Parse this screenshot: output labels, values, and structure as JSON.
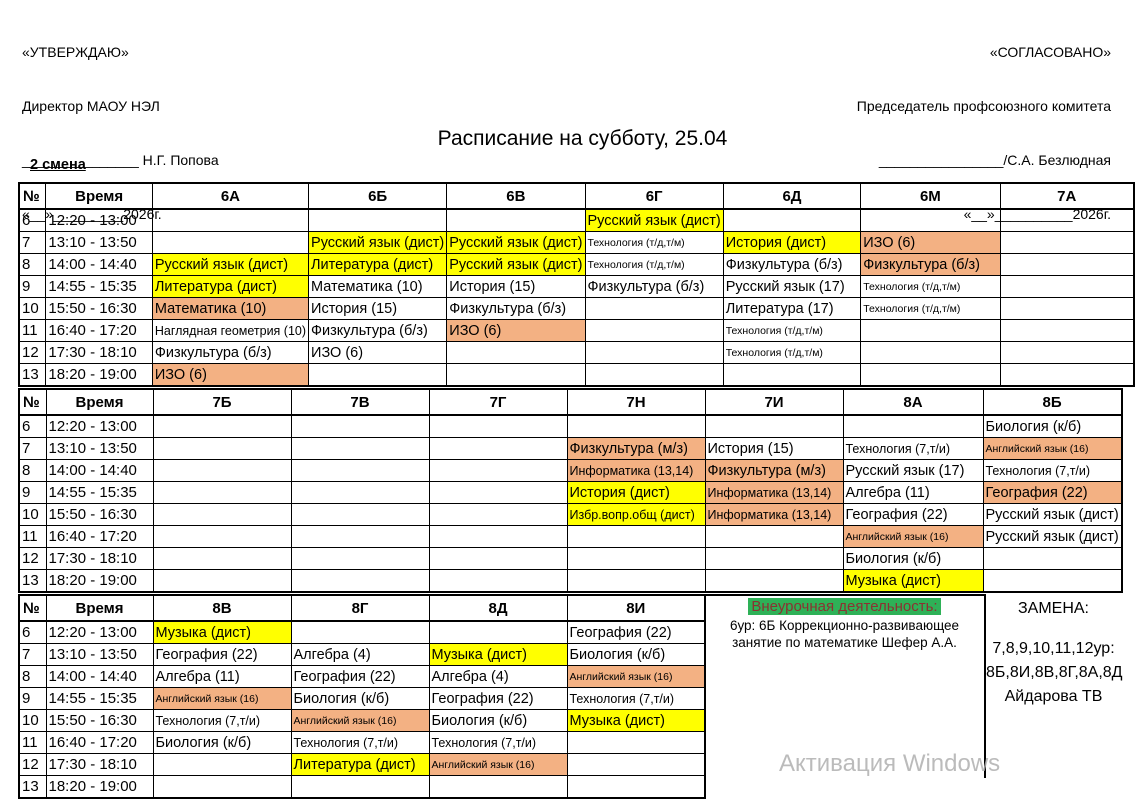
{
  "approval_left": {
    "lines": [
      "«УТВЕРЖДАЮ»",
      "Директор МАОУ НЭЛ",
      "_______________ Н.Г. Попова",
      "«__»_________2026г."
    ]
  },
  "approval_right": {
    "lines": [
      "«СОГЛАСОВАНО»",
      "Председатель профсоюзного комитета",
      "________________/С.А. Безлюдная",
      "«__»__________2026г."
    ]
  },
  "title": "Расписание на субботу, 25.04",
  "shift_label": "2 смена",
  "colors": {
    "highlight_yellow": "#ffff00",
    "highlight_orange": "#f3b183",
    "highlight_green": "#2eb157",
    "green_text": "#8b3232"
  },
  "tables": [
    {
      "name": "grades-6a-7a",
      "headers": [
        "№",
        "Время",
        "6А",
        "6Б",
        "6В",
        "6Г",
        "6Д",
        "6М",
        "7А"
      ],
      "rows": [
        {
          "num": "6",
          "time": "12:20 - 13:00",
          "cells": [
            null,
            null,
            null,
            {
              "t": "Русский язык (дист)",
              "bg": "y"
            },
            null,
            null,
            null
          ]
        },
        {
          "num": "7",
          "time": "13:10 - 13:50",
          "cells": [
            null,
            {
              "t": "Русский язык (дист)",
              "bg": "y"
            },
            {
              "t": "Русский язык (дист)",
              "bg": "y"
            },
            {
              "t": "Технология (т/д,т/м)",
              "fs": "s"
            },
            {
              "t": "История (дист)",
              "bg": "y"
            },
            {
              "t": "ИЗО (6)",
              "bg": "o"
            },
            null
          ]
        },
        {
          "num": "8",
          "time": "14:00 - 14:40",
          "cells": [
            {
              "t": "Русский язык (дист)",
              "bg": "y"
            },
            {
              "t": "Литература (дист)",
              "bg": "y"
            },
            {
              "t": "Русский язык (дист)",
              "bg": "y"
            },
            {
              "t": "Технология (т/д,т/м)",
              "fs": "s"
            },
            {
              "t": "Физкультура (б/з)"
            },
            {
              "t": "Физкультура (б/з)",
              "bg": "o"
            },
            null
          ]
        },
        {
          "num": "9",
          "time": "14:55 - 15:35",
          "cells": [
            {
              "t": "Литература (дист)",
              "bg": "y"
            },
            {
              "t": "Математика (10)"
            },
            {
              "t": "История (15)"
            },
            {
              "t": "Физкультура (б/з)"
            },
            {
              "t": "Русский язык (17)"
            },
            {
              "t": "Технология (т/д,т/м)",
              "fs": "s"
            },
            null
          ]
        },
        {
          "num": "10",
          "time": "15:50 - 16:30",
          "cells": [
            {
              "t": "Математика (10)",
              "bg": "o"
            },
            {
              "t": "История (15)"
            },
            {
              "t": "Физкультура (б/з)"
            },
            null,
            {
              "t": "Литература (17)"
            },
            {
              "t": "Технология (т/д,т/м)",
              "fs": "s"
            },
            null
          ]
        },
        {
          "num": "11",
          "time": "16:40 - 17:20",
          "cells": [
            {
              "t": "Наглядная геометрия (10)",
              "fs": "m"
            },
            {
              "t": "Физкультура (б/з)"
            },
            {
              "t": "ИЗО (6)",
              "bg": "o"
            },
            null,
            {
              "t": "Технология (т/д,т/м)",
              "fs": "s"
            },
            null,
            null
          ]
        },
        {
          "num": "12",
          "time": "17:30 - 18:10",
          "cells": [
            {
              "t": "Физкультура (б/з)"
            },
            {
              "t": "ИЗО (6)"
            },
            null,
            null,
            {
              "t": "Технология (т/д,т/м)",
              "fs": "s"
            },
            null,
            null
          ]
        },
        {
          "num": "13",
          "time": "18:20 - 19:00",
          "cells": [
            {
              "t": "ИЗО (6)",
              "bg": "o"
            },
            null,
            null,
            null,
            null,
            null,
            null
          ]
        }
      ]
    },
    {
      "name": "grades-7b-8b",
      "headers": [
        "№",
        "Время",
        "7Б",
        "7В",
        "7Г",
        "7Н",
        "7И",
        "8А",
        "8Б"
      ],
      "rows": [
        {
          "num": "6",
          "time": "12:20 - 13:00",
          "cells": [
            null,
            null,
            null,
            null,
            null,
            null,
            {
              "t": "Биология (к/б)"
            }
          ]
        },
        {
          "num": "7",
          "time": "13:10 - 13:50",
          "cells": [
            null,
            null,
            null,
            {
              "t": "Физкультура (м/з)",
              "bg": "o"
            },
            {
              "t": "История (15)"
            },
            {
              "t": "Технология (7,т/и)",
              "fs": "m"
            },
            {
              "t": "Английский язык (16)",
              "bg": "o",
              "fs": "s"
            }
          ]
        },
        {
          "num": "8",
          "time": "14:00 - 14:40",
          "cells": [
            null,
            null,
            null,
            {
              "t": "Информатика (13,14)",
              "bg": "o",
              "fs": "m"
            },
            {
              "t": "Физкультура (м/з)",
              "bg": "o"
            },
            {
              "t": "Русский язык (17)"
            },
            {
              "t": "Технология (7,т/и)",
              "fs": "m"
            }
          ]
        },
        {
          "num": "9",
          "time": "14:55 - 15:35",
          "cells": [
            null,
            null,
            null,
            {
              "t": "История (дист)",
              "bg": "y"
            },
            {
              "t": "Информатика (13,14)",
              "bg": "o",
              "fs": "m"
            },
            {
              "t": "Алгебра (11)"
            },
            {
              "t": "География (22)",
              "bg": "o"
            }
          ]
        },
        {
          "num": "10",
          "time": "15:50 - 16:30",
          "cells": [
            null,
            null,
            null,
            {
              "t": "Избр.вопр.общ (дист)",
              "bg": "y",
              "fs": "m"
            },
            {
              "t": "Информатика (13,14)",
              "bg": "o",
              "fs": "m"
            },
            {
              "t": "География (22)"
            },
            {
              "t": "Русский язык (дист)"
            }
          ]
        },
        {
          "num": "11",
          "time": "16:40 - 17:20",
          "cells": [
            null,
            null,
            null,
            null,
            null,
            {
              "t": "Английский язык (16)",
              "bg": "o",
              "fs": "s"
            },
            {
              "t": "Русский язык (дист)"
            }
          ]
        },
        {
          "num": "12",
          "time": "17:30 - 18:10",
          "cells": [
            null,
            null,
            null,
            null,
            null,
            {
              "t": "Биология (к/б)"
            },
            null
          ]
        },
        {
          "num": "13",
          "time": "18:20 - 19:00",
          "cells": [
            null,
            null,
            null,
            null,
            null,
            {
              "t": "Музыка (дист)",
              "bg": "y"
            },
            null
          ]
        }
      ]
    },
    {
      "name": "grades-8v-8i",
      "headers": [
        "№",
        "Время",
        "8В",
        "8Г",
        "8Д",
        "8И"
      ],
      "rows": [
        {
          "num": "6",
          "time": "12:20 - 13:00",
          "cells": [
            {
              "t": "Музыка (дист)",
              "bg": "y"
            },
            null,
            null,
            {
              "t": "География (22)"
            }
          ]
        },
        {
          "num": "7",
          "time": "13:10 - 13:50",
          "cells": [
            {
              "t": "География (22)"
            },
            {
              "t": "Алгебра (4)"
            },
            {
              "t": "Музыка (дист)",
              "bg": "y"
            },
            {
              "t": "Биология (к/б)"
            }
          ]
        },
        {
          "num": "8",
          "time": "14:00 - 14:40",
          "cells": [
            {
              "t": "Алгебра (11)"
            },
            {
              "t": "География (22)"
            },
            {
              "t": "Алгебра (4)"
            },
            {
              "t": "Английский язык (16)",
              "bg": "o",
              "fs": "s"
            }
          ]
        },
        {
          "num": "9",
          "time": "14:55 - 15:35",
          "cells": [
            {
              "t": "Английский язык (16)",
              "bg": "o",
              "fs": "s"
            },
            {
              "t": "Биология (к/б)"
            },
            {
              "t": "География (22)"
            },
            {
              "t": "Технология (7,т/и)",
              "fs": "m"
            }
          ]
        },
        {
          "num": "10",
          "time": "15:50 - 16:30",
          "cells": [
            {
              "t": "Технология (7,т/и)",
              "fs": "m"
            },
            {
              "t": "Английский язык (16)",
              "bg": "o",
              "fs": "s"
            },
            {
              "t": "Биология (к/б)"
            },
            {
              "t": "Музыка (дист)",
              "bg": "y"
            }
          ]
        },
        {
          "num": "11",
          "time": "16:40 - 17:20",
          "cells": [
            {
              "t": "Биология (к/б)"
            },
            {
              "t": "Технология (7,т/и)",
              "fs": "m"
            },
            {
              "t": "Технология (7,т/и)",
              "fs": "m"
            },
            null
          ]
        },
        {
          "num": "12",
          "time": "17:30 - 18:10",
          "cells": [
            null,
            {
              "t": "Литература (дист)",
              "bg": "y"
            },
            {
              "t": "Английский язык (16)",
              "bg": "o",
              "fs": "s"
            },
            null
          ]
        },
        {
          "num": "13",
          "time": "18:20 - 19:00",
          "cells": [
            null,
            null,
            null,
            null
          ]
        }
      ]
    }
  ],
  "extracurricular": {
    "title": "Внеурочная деятельность:",
    "note": "6ур: 6Б Коррекционно-развивающее занятие по математике Шефер А.А."
  },
  "substitution": {
    "title": "ЗАМЕНА:",
    "lines": [
      "7,8,9,10,11,12ур:",
      "8Б,8И,8В,8Г,8А,8Д",
      "Айдарова ТВ"
    ]
  },
  "watermark": "Активация Windows"
}
